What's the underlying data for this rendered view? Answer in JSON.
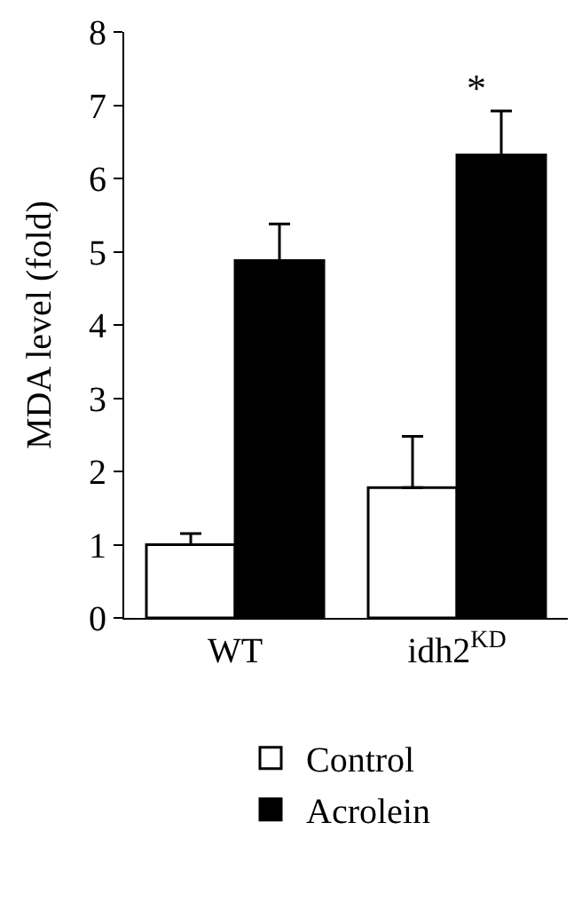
{
  "chart_data": {
    "type": "bar",
    "ylabel": "MDA level (fold)",
    "categories": [
      "WT",
      "idh2$^{KD}$"
    ],
    "series": [
      {
        "name": "Control",
        "color": "#ffffff",
        "values": [
          1.0,
          1.78
        ],
        "errors": [
          [
            1.0,
            1.15
          ],
          [
            1.78,
            2.48
          ]
        ]
      },
      {
        "name": "Acrolein",
        "color": "#000000",
        "values": [
          4.88,
          6.32
        ],
        "errors": [
          [
            4.88,
            5.38
          ],
          [
            6.32,
            6.92
          ]
        ]
      }
    ],
    "annotations": [
      "*"
    ],
    "ylim": [
      0,
      8
    ],
    "yticks": [
      0,
      1,
      2,
      3,
      4,
      5,
      6,
      7,
      8
    ],
    "legend": "bottom"
  }
}
